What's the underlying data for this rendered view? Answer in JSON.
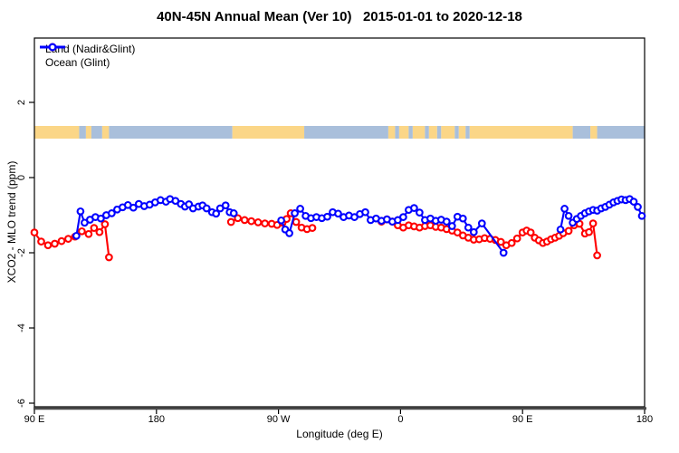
{
  "title": "40N-45N Annual Mean (Ver 10)   2015-01-01 to 2020-12-18",
  "legend": {
    "items": [
      {
        "label": "Land (Nadir&Glint)",
        "series": "land"
      },
      {
        "label": "Ocean (Glint)",
        "series": "ocean"
      }
    ]
  },
  "axes": {
    "x": {
      "label": "Longitude (deg E)",
      "ticks": [
        {
          "deg": 0,
          "label": "90 E"
        },
        {
          "deg": 90,
          "label": "180"
        },
        {
          "deg": 180,
          "label": "90 W"
        },
        {
          "deg": 270,
          "label": "0"
        },
        {
          "deg": 360,
          "label": "90 E"
        },
        {
          "deg": 450,
          "label": "180"
        }
      ]
    },
    "y": {
      "label": "XCO2 - MLO trend (ppm)",
      "ticks": [
        {
          "value": 2,
          "label": "2"
        },
        {
          "value": 0,
          "label": "0"
        },
        {
          "value": -2,
          "label": "-2"
        },
        {
          "value": -4,
          "label": "-4"
        },
        {
          "value": -6,
          "label": "-6"
        }
      ]
    }
  },
  "colors": {
    "land": "#ff0000",
    "ocean": "#0000ff",
    "map_land": "#fbd687",
    "map_ocean": "#a9bfdb",
    "axis": "#000000",
    "axis_baseline": "#4a4a4a"
  },
  "map_band": {
    "note": "land/ocean strip at latitude band, plotted near y=1.2 ppm",
    "segments": [
      {
        "from": 0,
        "to": 33,
        "type": "land"
      },
      {
        "from": 33,
        "to": 38,
        "type": "ocean"
      },
      {
        "from": 38,
        "to": 42,
        "type": "land"
      },
      {
        "from": 42,
        "to": 50,
        "type": "ocean"
      },
      {
        "from": 50,
        "to": 55,
        "type": "land"
      },
      {
        "from": 55,
        "to": 146,
        "type": "ocean"
      },
      {
        "from": 146,
        "to": 199,
        "type": "land"
      },
      {
        "from": 199,
        "to": 261,
        "type": "ocean"
      },
      {
        "from": 261,
        "to": 266,
        "type": "land"
      },
      {
        "from": 266,
        "to": 269,
        "type": "ocean"
      },
      {
        "from": 269,
        "to": 276,
        "type": "land"
      },
      {
        "from": 276,
        "to": 279,
        "type": "ocean"
      },
      {
        "from": 279,
        "to": 288,
        "type": "land"
      },
      {
        "from": 288,
        "to": 291,
        "type": "ocean"
      },
      {
        "from": 291,
        "to": 297,
        "type": "land"
      },
      {
        "from": 297,
        "to": 300,
        "type": "ocean"
      },
      {
        "from": 300,
        "to": 310,
        "type": "land"
      },
      {
        "from": 310,
        "to": 313,
        "type": "ocean"
      },
      {
        "from": 313,
        "to": 318,
        "type": "land"
      },
      {
        "from": 318,
        "to": 321,
        "type": "ocean"
      },
      {
        "from": 321,
        "to": 397,
        "type": "land"
      },
      {
        "from": 397,
        "to": 410,
        "type": "ocean"
      },
      {
        "from": 410,
        "to": 415,
        "type": "land"
      },
      {
        "from": 415,
        "to": 450,
        "type": "ocean"
      }
    ]
  },
  "chart_data": {
    "type": "line",
    "title": "40N-45N Annual Mean (Ver 10)   2015-01-01 to 2020-12-18",
    "xlabel": "Longitude (deg E)",
    "ylabel": "XCO2 - MLO trend (ppm)",
    "x_encoding": "degrees east of 90E; axis spans 450 deg (90E,180,90W,0,90E,180 wraparound)",
    "xlim_deg": [
      0,
      450
    ],
    "ylim": [
      -6.1,
      3.7
    ],
    "grid": false,
    "legend_position": "top-left inside plot",
    "series": [
      {
        "name": "Land (Nadir&Glint)",
        "key": "land",
        "color": "#ff0000",
        "marker": "open-circle",
        "segments": [
          [
            [
              0,
              -1.46
            ],
            [
              5,
              -1.7
            ],
            [
              10,
              -1.8
            ],
            [
              15,
              -1.76
            ],
            [
              20,
              -1.69
            ],
            [
              25,
              -1.63
            ],
            [
              30,
              -1.57
            ],
            [
              35,
              -1.43
            ],
            [
              40,
              -1.5
            ],
            [
              44,
              -1.34
            ],
            [
              48,
              -1.45
            ],
            [
              52,
              -1.24
            ],
            [
              55,
              -2.12
            ]
          ],
          [
            [
              145,
              -1.18
            ],
            [
              150,
              -1.08
            ],
            [
              155,
              -1.13
            ],
            [
              160,
              -1.16
            ],
            [
              165,
              -1.19
            ],
            [
              170,
              -1.22
            ],
            [
              175,
              -1.23
            ],
            [
              179,
              -1.26
            ],
            [
              183,
              -1.2
            ],
            [
              186,
              -1.1
            ],
            [
              189,
              -0.95
            ],
            [
              193,
              -1.18
            ],
            [
              197,
              -1.33
            ],
            [
              201,
              -1.37
            ],
            [
              205,
              -1.34
            ]
          ],
          [
            [
              256,
              -1.17
            ],
            [
              260,
              -1.11
            ],
            [
              264,
              -1.17
            ],
            [
              268,
              -1.27
            ],
            [
              272,
              -1.33
            ],
            [
              276,
              -1.27
            ],
            [
              280,
              -1.3
            ],
            [
              284,
              -1.33
            ],
            [
              288,
              -1.29
            ],
            [
              292,
              -1.27
            ],
            [
              296,
              -1.31
            ],
            [
              300,
              -1.33
            ],
            [
              304,
              -1.37
            ],
            [
              308,
              -1.41
            ],
            [
              312,
              -1.46
            ],
            [
              316,
              -1.54
            ],
            [
              320,
              -1.6
            ],
            [
              324,
              -1.65
            ],
            [
              328,
              -1.64
            ],
            [
              332,
              -1.61
            ],
            [
              336,
              -1.63
            ],
            [
              340,
              -1.66
            ],
            [
              344,
              -1.71
            ],
            [
              348,
              -1.8
            ],
            [
              352,
              -1.74
            ],
            [
              356,
              -1.62
            ],
            [
              360,
              -1.46
            ],
            [
              363,
              -1.41
            ],
            [
              366,
              -1.46
            ],
            [
              369,
              -1.6
            ],
            [
              372,
              -1.67
            ],
            [
              375,
              -1.74
            ],
            [
              378,
              -1.7
            ],
            [
              381,
              -1.64
            ],
            [
              384,
              -1.6
            ],
            [
              387,
              -1.55
            ],
            [
              390,
              -1.48
            ],
            [
              394,
              -1.42
            ],
            [
              398,
              -1.27
            ],
            [
              402,
              -1.23
            ],
            [
              406,
              -1.49
            ],
            [
              409,
              -1.45
            ],
            [
              412,
              -1.22
            ],
            [
              415,
              -2.07
            ]
          ]
        ]
      },
      {
        "name": "Ocean (Glint)",
        "key": "ocean",
        "color": "#0000ff",
        "marker": "open-circle",
        "segments": [
          [
            [
              31,
              -1.55
            ],
            [
              34,
              -0.9
            ],
            [
              37,
              -1.2
            ],
            [
              41,
              -1.12
            ],
            [
              45,
              -1.05
            ],
            [
              49,
              -1.09
            ],
            [
              53,
              -1.0
            ],
            [
              57,
              -0.95
            ],
            [
              61,
              -0.85
            ],
            [
              65,
              -0.79
            ],
            [
              69,
              -0.73
            ],
            [
              73,
              -0.8
            ],
            [
              77,
              -0.7
            ],
            [
              81,
              -0.76
            ],
            [
              85,
              -0.72
            ],
            [
              89,
              -0.66
            ],
            [
              93,
              -0.6
            ],
            [
              97,
              -0.64
            ],
            [
              100,
              -0.57
            ],
            [
              104,
              -0.62
            ],
            [
              108,
              -0.7
            ],
            [
              111,
              -0.77
            ],
            [
              114,
              -0.71
            ],
            [
              117,
              -0.82
            ],
            [
              121,
              -0.77
            ],
            [
              124,
              -0.74
            ],
            [
              127,
              -0.82
            ],
            [
              131,
              -0.92
            ],
            [
              134,
              -0.96
            ],
            [
              137,
              -0.82
            ],
            [
              141,
              -0.74
            ],
            [
              144,
              -0.92
            ],
            [
              147,
              -0.95
            ]
          ],
          [
            [
              182,
              -1.14
            ],
            [
              185,
              -1.38
            ],
            [
              188,
              -1.48
            ],
            [
              192,
              -0.95
            ],
            [
              196,
              -0.83
            ],
            [
              200,
              -1.02
            ],
            [
              204,
              -1.08
            ],
            [
              208,
              -1.05
            ],
            [
              212,
              -1.08
            ],
            [
              216,
              -1.04
            ],
            [
              220,
              -0.92
            ],
            [
              224,
              -0.96
            ],
            [
              228,
              -1.05
            ],
            [
              232,
              -1.01
            ],
            [
              236,
              -1.05
            ],
            [
              240,
              -0.97
            ],
            [
              244,
              -0.92
            ],
            [
              248,
              -1.13
            ],
            [
              252,
              -1.09
            ],
            [
              256,
              -1.15
            ],
            [
              260,
              -1.11
            ],
            [
              264,
              -1.17
            ],
            [
              268,
              -1.13
            ],
            [
              272,
              -1.05
            ],
            [
              276,
              -0.86
            ],
            [
              280,
              -0.81
            ],
            [
              284,
              -0.93
            ],
            [
              288,
              -1.13
            ],
            [
              292,
              -1.09
            ],
            [
              296,
              -1.15
            ],
            [
              300,
              -1.12
            ],
            [
              304,
              -1.17
            ],
            [
              308,
              -1.29
            ],
            [
              312,
              -1.04
            ],
            [
              316,
              -1.09
            ],
            [
              320,
              -1.33
            ],
            [
              324,
              -1.45
            ],
            [
              330,
              -1.22
            ],
            [
              346,
              -2.0
            ]
          ],
          [
            [
              388,
              -1.38
            ],
            [
              391,
              -0.83
            ],
            [
              394,
              -1.02
            ],
            [
              397,
              -1.2
            ],
            [
              400,
              -1.1
            ],
            [
              403,
              -1.02
            ],
            [
              406,
              -0.95
            ],
            [
              409,
              -0.9
            ],
            [
              412,
              -0.86
            ],
            [
              415,
              -0.88
            ],
            [
              418,
              -0.82
            ],
            [
              421,
              -0.78
            ],
            [
              424,
              -0.72
            ],
            [
              427,
              -0.66
            ],
            [
              430,
              -0.62
            ],
            [
              433,
              -0.58
            ],
            [
              436,
              -0.6
            ],
            [
              439,
              -0.57
            ],
            [
              442,
              -0.64
            ],
            [
              445,
              -0.78
            ],
            [
              448,
              -1.02
            ]
          ]
        ]
      }
    ]
  }
}
